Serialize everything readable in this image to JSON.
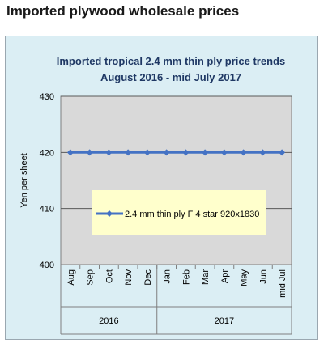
{
  "page": {
    "heading": "Imported plywood wholesale prices"
  },
  "chart_data": {
    "type": "line",
    "title": "Imported tropical 2.4 mm thin ply price trends",
    "subtitle": "August 2016 - mid July 2017",
    "xlabel": "",
    "ylabel": "Yen per sheet",
    "ylim": [
      400,
      430
    ],
    "yticks": [
      400,
      410,
      420,
      430
    ],
    "grid": true,
    "legend_position": "center",
    "categories": [
      "Aug",
      "Sep",
      "Oct",
      "Nov",
      "Dec",
      "Jan",
      "Feb",
      "Mar",
      "Apr",
      "May",
      "Jun",
      "mid Jul"
    ],
    "category_groups": [
      {
        "label": "2016",
        "count": 5
      },
      {
        "label": "2017",
        "count": 7
      }
    ],
    "series": [
      {
        "name": "2.4 mm thin ply F 4 star 920x1830",
        "color": "#4472c4",
        "values": [
          420,
          420,
          420,
          420,
          420,
          420,
          420,
          420,
          420,
          420,
          420,
          420
        ]
      }
    ],
    "colors": {
      "plot_bg": "#d9d9d9",
      "frame_bg": "#dbeef4",
      "legend_bg": "#ffffcc",
      "title": "#1f3864"
    }
  }
}
